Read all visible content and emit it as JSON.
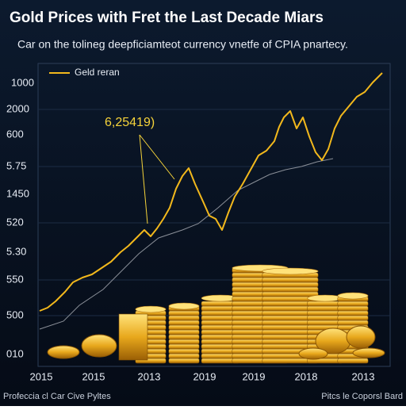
{
  "title": "Gold Prices with Fret the Last Decade Miars",
  "subtitle": "Car on the tolineg deepficiamteot currency vnetfe of CPIA pnartecy.",
  "legend": {
    "label": "Geld reran"
  },
  "annotation": "6,25419)",
  "y_labels": [
    "1000",
    "2000",
    "600",
    "5.75",
    "1450",
    "520",
    "5.30",
    "550",
    "500",
    "010"
  ],
  "x_labels": [
    "2015",
    "2015",
    "2013",
    "2019",
    "2019",
    "2018",
    "2013"
  ],
  "footer": {
    "left": "Profeccia cl Car Cive Pyltes",
    "right": "Pitcs le Coporsl Bard"
  }
}
